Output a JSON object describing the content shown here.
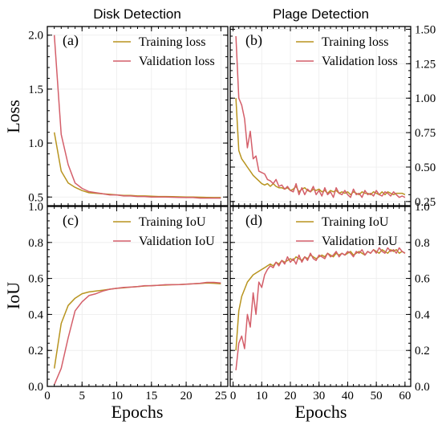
{
  "figure": {
    "column_titles": [
      "Disk Detection",
      "Plage Detection"
    ],
    "row_ylabels": [
      "Loss",
      "IoU"
    ],
    "xlabel": "Epochs"
  },
  "colors": {
    "training": "#b8941f",
    "validation": "#d45f6a"
  },
  "chart_data": [
    {
      "id": "a",
      "type": "line",
      "tag": "(a)",
      "title": "Disk Detection",
      "ylabel": "Loss",
      "xlabel": "",
      "xlim": [
        0,
        26
      ],
      "ylim": [
        0.42,
        2.08
      ],
      "yticks": [
        0.5,
        1.0,
        1.5,
        2.0
      ],
      "ytick_labels": [
        "0.5",
        "1.0",
        "1.5",
        "2.0"
      ],
      "yaxis_side": "left",
      "xticks": [
        0,
        5,
        10,
        15,
        20,
        25
      ],
      "xtick_labels": [],
      "legend": "top-right",
      "grid": true,
      "series": [
        {
          "name": "Training loss",
          "color": "#b8941f",
          "x": [
            1,
            2,
            3,
            4,
            5,
            6,
            7,
            8,
            9,
            10,
            11,
            12,
            13,
            14,
            15,
            16,
            17,
            18,
            19,
            20,
            21,
            22,
            23,
            24,
            25
          ],
          "y": [
            1.1,
            0.74,
            0.63,
            0.59,
            0.56,
            0.54,
            0.535,
            0.53,
            0.525,
            0.52,
            0.515,
            0.515,
            0.51,
            0.51,
            0.508,
            0.505,
            0.505,
            0.503,
            0.502,
            0.5,
            0.5,
            0.498,
            0.497,
            0.495,
            0.495
          ]
        },
        {
          "name": "Validation loss",
          "color": "#d45f6a",
          "x": [
            1,
            2,
            3,
            4,
            5,
            6,
            7,
            8,
            9,
            10,
            11,
            12,
            13,
            14,
            15,
            16,
            17,
            18,
            19,
            20,
            21,
            22,
            23,
            24,
            25
          ],
          "y": [
            2.0,
            1.08,
            0.8,
            0.63,
            0.58,
            0.55,
            0.54,
            0.53,
            0.52,
            0.52,
            0.51,
            0.51,
            0.505,
            0.505,
            0.5,
            0.5,
            0.5,
            0.498,
            0.497,
            0.495,
            0.495,
            0.49,
            0.49,
            0.49,
            0.49
          ]
        }
      ]
    },
    {
      "id": "b",
      "type": "line",
      "tag": "(b)",
      "title": "Plage Detection",
      "ylabel": "",
      "xlabel": "",
      "xlim": [
        -1,
        62
      ],
      "ylim": [
        0.22,
        1.52
      ],
      "yticks": [
        0.25,
        0.5,
        0.75,
        1.0,
        1.25,
        1.5
      ],
      "ytick_labels": [
        "0.25",
        "0.50",
        "0.75",
        "1.00",
        "1.25",
        "1.50"
      ],
      "yaxis_side": "right",
      "xticks": [
        0,
        10,
        20,
        30,
        40,
        50,
        60
      ],
      "xtick_labels": [],
      "legend": "top-right",
      "grid": true,
      "series": [
        {
          "name": "Training loss",
          "color": "#b8941f",
          "x": [
            1,
            2,
            3,
            4,
            5,
            6,
            7,
            8,
            9,
            10,
            11,
            12,
            13,
            14,
            15,
            16,
            17,
            18,
            19,
            20,
            21,
            22,
            23,
            24,
            25,
            26,
            27,
            28,
            29,
            30,
            31,
            32,
            33,
            34,
            35,
            36,
            37,
            38,
            39,
            40,
            41,
            42,
            43,
            44,
            45,
            46,
            47,
            48,
            49,
            50,
            51,
            52,
            53,
            54,
            55,
            56,
            57,
            58,
            59,
            60
          ],
          "y": [
            1.0,
            0.62,
            0.56,
            0.53,
            0.5,
            0.47,
            0.44,
            0.42,
            0.4,
            0.38,
            0.37,
            0.38,
            0.36,
            0.38,
            0.36,
            0.35,
            0.35,
            0.34,
            0.35,
            0.33,
            0.34,
            0.36,
            0.32,
            0.34,
            0.35,
            0.33,
            0.32,
            0.34,
            0.33,
            0.34,
            0.32,
            0.33,
            0.31,
            0.33,
            0.32,
            0.33,
            0.31,
            0.32,
            0.31,
            0.32,
            0.3,
            0.32,
            0.31,
            0.3,
            0.32,
            0.31,
            0.31,
            0.3,
            0.32,
            0.31,
            0.3,
            0.32,
            0.3,
            0.32,
            0.31,
            0.3,
            0.31,
            0.31,
            0.31,
            0.3
          ]
        },
        {
          "name": "Validation loss",
          "color": "#d45f6a",
          "x": [
            1,
            2,
            3,
            4,
            5,
            6,
            7,
            8,
            9,
            10,
            11,
            12,
            13,
            14,
            15,
            16,
            17,
            18,
            19,
            20,
            21,
            22,
            23,
            24,
            25,
            26,
            27,
            28,
            29,
            30,
            31,
            32,
            33,
            34,
            35,
            36,
            37,
            38,
            39,
            40,
            41,
            42,
            43,
            44,
            45,
            46,
            47,
            48,
            49,
            50,
            51,
            52,
            53,
            54,
            55,
            56,
            57,
            58,
            59,
            60
          ],
          "y": [
            1.45,
            1.0,
            0.95,
            0.85,
            0.64,
            0.76,
            0.56,
            0.58,
            0.47,
            0.46,
            0.45,
            0.41,
            0.4,
            0.38,
            0.41,
            0.36,
            0.37,
            0.34,
            0.36,
            0.33,
            0.32,
            0.38,
            0.3,
            0.35,
            0.3,
            0.34,
            0.32,
            0.36,
            0.3,
            0.33,
            0.29,
            0.35,
            0.3,
            0.32,
            0.28,
            0.35,
            0.31,
            0.3,
            0.33,
            0.3,
            0.28,
            0.34,
            0.3,
            0.31,
            0.28,
            0.33,
            0.3,
            0.31,
            0.29,
            0.33,
            0.3,
            0.29,
            0.32,
            0.31,
            0.29,
            0.32,
            0.3,
            0.28,
            0.29,
            0.28
          ]
        }
      ]
    },
    {
      "id": "c",
      "type": "line",
      "tag": "(c)",
      "title": "",
      "ylabel": "IoU",
      "xlabel": "Epochs",
      "xlim": [
        0,
        26
      ],
      "ylim": [
        0,
        1.0
      ],
      "yticks": [
        0.0,
        0.2,
        0.4,
        0.6,
        0.8,
        1.0
      ],
      "ytick_labels": [
        "0.0",
        "0.2",
        "0.4",
        "0.6",
        "0.8",
        "1.0"
      ],
      "yaxis_side": "left",
      "xticks": [
        0,
        5,
        10,
        15,
        20,
        25
      ],
      "xtick_labels": [
        "0",
        "5",
        "10",
        "15",
        "20",
        "25"
      ],
      "legend": "top-right",
      "grid": true,
      "series": [
        {
          "name": "Training IoU",
          "color": "#b8941f",
          "x": [
            1,
            2,
            3,
            4,
            5,
            6,
            7,
            8,
            9,
            10,
            11,
            12,
            13,
            14,
            15,
            16,
            17,
            18,
            19,
            20,
            21,
            22,
            23,
            24,
            25
          ],
          "y": [
            0.1,
            0.35,
            0.45,
            0.49,
            0.515,
            0.525,
            0.53,
            0.535,
            0.54,
            0.545,
            0.548,
            0.552,
            0.555,
            0.558,
            0.56,
            0.562,
            0.563,
            0.565,
            0.566,
            0.568,
            0.57,
            0.572,
            0.575,
            0.573,
            0.57
          ]
        },
        {
          "name": "Validation IoU",
          "color": "#d45f6a",
          "x": [
            1,
            2,
            3,
            4,
            5,
            6,
            7,
            8,
            9,
            10,
            11,
            12,
            13,
            14,
            15,
            16,
            17,
            18,
            19,
            20,
            21,
            22,
            23,
            24,
            25
          ],
          "y": [
            0.01,
            0.1,
            0.27,
            0.42,
            0.47,
            0.505,
            0.515,
            0.53,
            0.54,
            0.545,
            0.55,
            0.552,
            0.555,
            0.56,
            0.56,
            0.562,
            0.565,
            0.565,
            0.566,
            0.568,
            0.57,
            0.573,
            0.578,
            0.578,
            0.575
          ]
        }
      ]
    },
    {
      "id": "d",
      "type": "line",
      "tag": "(d)",
      "title": "",
      "ylabel": "",
      "xlabel": "Epochs",
      "xlim": [
        -1,
        62
      ],
      "ylim": [
        0,
        1.0
      ],
      "yticks": [
        0.0,
        0.2,
        0.4,
        0.6,
        0.8,
        1.0
      ],
      "ytick_labels": [
        "0.0",
        "0.2",
        "0.4",
        "0.6",
        "0.8",
        "1.0"
      ],
      "yaxis_side": "right",
      "xticks": [
        0,
        10,
        20,
        30,
        40,
        50,
        60
      ],
      "xtick_labels": [
        "0",
        "10",
        "20",
        "30",
        "40",
        "50",
        "60"
      ],
      "legend": "top-right",
      "grid": true,
      "series": [
        {
          "name": "Training IoU",
          "color": "#b8941f",
          "x": [
            1,
            2,
            3,
            4,
            5,
            6,
            7,
            8,
            9,
            10,
            11,
            12,
            13,
            14,
            15,
            16,
            17,
            18,
            19,
            20,
            21,
            22,
            23,
            24,
            25,
            26,
            27,
            28,
            29,
            30,
            31,
            32,
            33,
            34,
            35,
            36,
            37,
            38,
            39,
            40,
            41,
            42,
            43,
            44,
            45,
            46,
            47,
            48,
            49,
            50,
            51,
            52,
            53,
            54,
            55,
            56,
            57,
            58,
            59,
            60
          ],
          "y": [
            0.2,
            0.42,
            0.5,
            0.54,
            0.58,
            0.6,
            0.62,
            0.63,
            0.64,
            0.65,
            0.66,
            0.67,
            0.68,
            0.67,
            0.69,
            0.68,
            0.7,
            0.69,
            0.7,
            0.71,
            0.7,
            0.72,
            0.71,
            0.7,
            0.72,
            0.71,
            0.73,
            0.72,
            0.71,
            0.72,
            0.73,
            0.72,
            0.74,
            0.73,
            0.72,
            0.74,
            0.73,
            0.74,
            0.73,
            0.74,
            0.75,
            0.73,
            0.74,
            0.75,
            0.74,
            0.73,
            0.75,
            0.74,
            0.76,
            0.75,
            0.74,
            0.76,
            0.75,
            0.74,
            0.76,
            0.75,
            0.76,
            0.74,
            0.75,
            0.74
          ]
        },
        {
          "name": "Validation IoU",
          "color": "#d45f6a",
          "x": [
            1,
            2,
            3,
            4,
            5,
            6,
            7,
            8,
            9,
            10,
            11,
            12,
            13,
            14,
            15,
            16,
            17,
            18,
            19,
            20,
            21,
            22,
            23,
            24,
            25,
            26,
            27,
            28,
            29,
            30,
            31,
            32,
            33,
            34,
            35,
            36,
            37,
            38,
            39,
            40,
            41,
            42,
            43,
            44,
            45,
            46,
            47,
            48,
            49,
            50,
            51,
            52,
            53,
            54,
            55,
            56,
            57,
            58,
            59,
            60
          ],
          "y": [
            0.09,
            0.24,
            0.28,
            0.21,
            0.4,
            0.33,
            0.52,
            0.4,
            0.58,
            0.55,
            0.62,
            0.65,
            0.67,
            0.66,
            0.69,
            0.67,
            0.7,
            0.68,
            0.72,
            0.69,
            0.71,
            0.68,
            0.73,
            0.69,
            0.72,
            0.7,
            0.74,
            0.71,
            0.7,
            0.73,
            0.72,
            0.71,
            0.74,
            0.72,
            0.73,
            0.75,
            0.72,
            0.74,
            0.73,
            0.75,
            0.74,
            0.72,
            0.75,
            0.74,
            0.76,
            0.73,
            0.75,
            0.74,
            0.76,
            0.74,
            0.77,
            0.75,
            0.74,
            0.77,
            0.75,
            0.76,
            0.74,
            0.77,
            0.75,
            0.74
          ]
        }
      ]
    }
  ]
}
